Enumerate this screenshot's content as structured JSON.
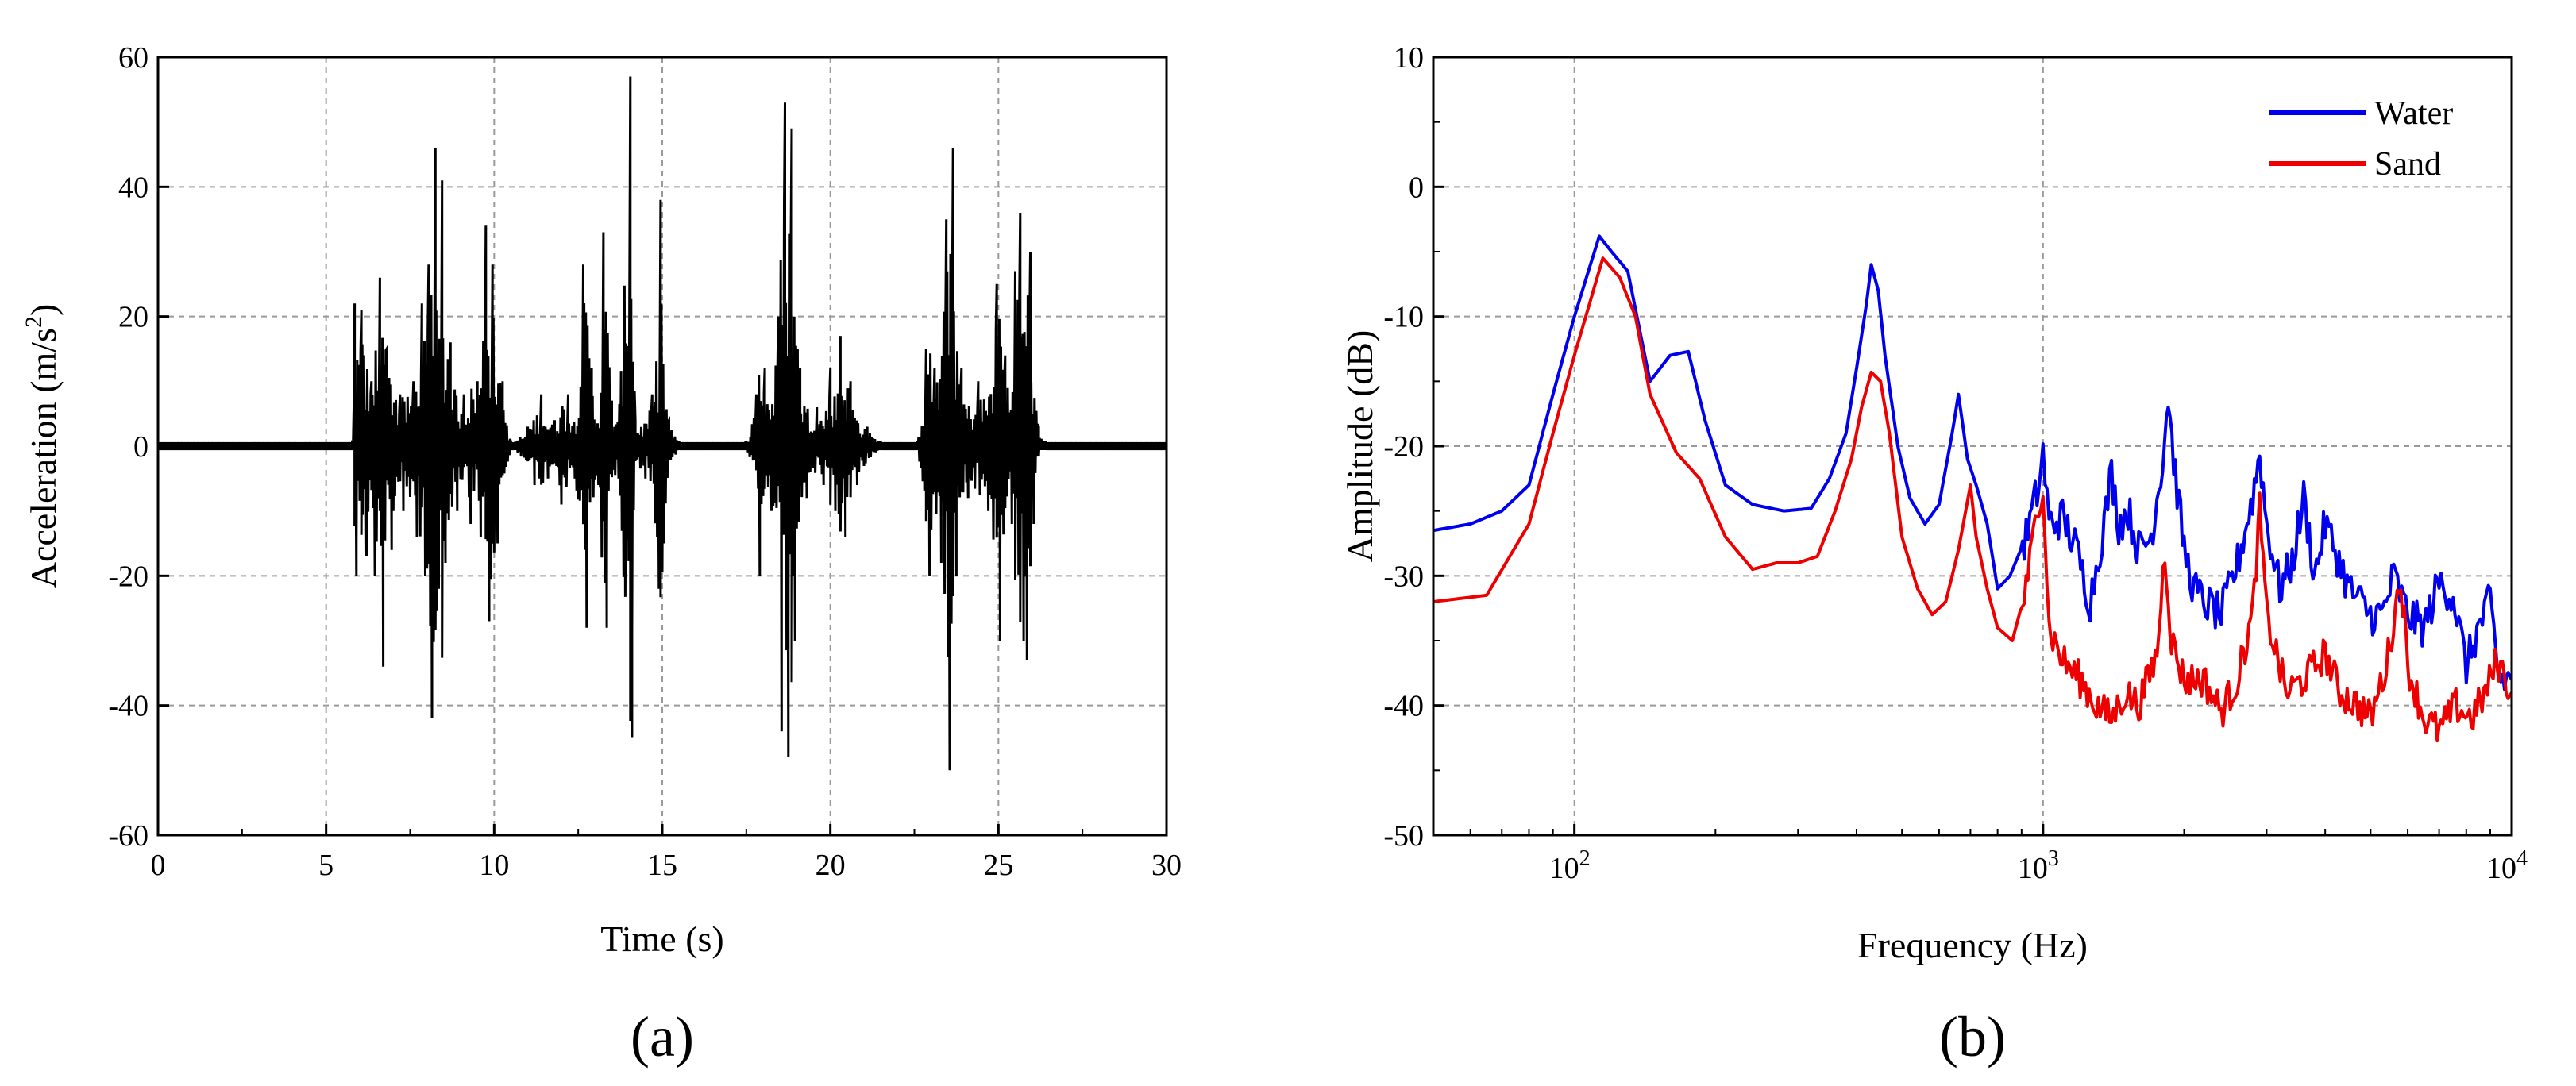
{
  "chart_data": [
    {
      "type": "line",
      "panel_label": "(a)",
      "xlabel": "Time (s)",
      "ylabel_main": "Acceleration (m/s",
      "ylabel_sup": "2",
      "ylabel_close": ")",
      "xlim": [
        0,
        30
      ],
      "ylim": [
        -60,
        60
      ],
      "xticks": [
        0,
        5,
        10,
        15,
        20,
        25,
        30
      ],
      "yticks": [
        -60,
        -40,
        -20,
        0,
        20,
        40,
        60
      ],
      "grid": true,
      "series": [
        {
          "color": "#000000",
          "noise_floor": 0.6,
          "points": [
            [
              0,
              0
            ],
            [
              5.8,
              0.5
            ],
            [
              5.85,
              22
            ],
            [
              5.9,
              -20
            ],
            [
              6.05,
              21
            ],
            [
              6.2,
              -17
            ],
            [
              6.35,
              10
            ],
            [
              6.45,
              -20
            ],
            [
              6.6,
              26
            ],
            [
              6.7,
              -34
            ],
            [
              6.8,
              15
            ],
            [
              6.95,
              -16
            ],
            [
              7.2,
              8
            ],
            [
              7.3,
              -10
            ],
            [
              7.6,
              10
            ],
            [
              7.7,
              -14
            ],
            [
              7.85,
              22
            ],
            [
              7.95,
              -20
            ],
            [
              8.05,
              28
            ],
            [
              8.15,
              -42
            ],
            [
              8.25,
              46
            ],
            [
              8.35,
              -22
            ],
            [
              8.45,
              41
            ],
            [
              8.55,
              -18
            ],
            [
              8.7,
              16
            ],
            [
              8.9,
              -10
            ],
            [
              9.1,
              8
            ],
            [
              9.3,
              -12
            ],
            [
              9.5,
              10
            ],
            [
              9.6,
              -14
            ],
            [
              9.75,
              34
            ],
            [
              9.85,
              -27
            ],
            [
              9.95,
              28
            ],
            [
              10.1,
              -15
            ],
            [
              10.25,
              10
            ],
            [
              10.5,
              0.6
            ],
            [
              11.0,
              3
            ],
            [
              11.2,
              -6
            ],
            [
              11.4,
              8
            ],
            [
              11.6,
              -5
            ],
            [
              11.8,
              4
            ],
            [
              12.0,
              -9
            ],
            [
              12.2,
              8
            ],
            [
              12.4,
              -5
            ],
            [
              12.65,
              28
            ],
            [
              12.75,
              -28
            ],
            [
              12.9,
              12
            ],
            [
              13.1,
              -6
            ],
            [
              13.25,
              33
            ],
            [
              13.35,
              -28
            ],
            [
              13.5,
              7
            ],
            [
              13.7,
              -5
            ],
            [
              14.05,
              57
            ],
            [
              14.1,
              -45
            ],
            [
              14.2,
              4
            ],
            [
              14.5,
              -5
            ],
            [
              14.7,
              8
            ],
            [
              14.9,
              -22
            ],
            [
              14.95,
              38
            ],
            [
              15.05,
              -15
            ],
            [
              15.2,
              4
            ],
            [
              15.5,
              0.6
            ],
            [
              17.5,
              0.6
            ],
            [
              17.8,
              8
            ],
            [
              17.9,
              -20
            ],
            [
              18.05,
              12
            ],
            [
              18.25,
              -10
            ],
            [
              18.45,
              20
            ],
            [
              18.55,
              -44
            ],
            [
              18.65,
              53
            ],
            [
              18.75,
              -48
            ],
            [
              18.85,
              49
            ],
            [
              18.95,
              -30
            ],
            [
              19.1,
              12
            ],
            [
              19.3,
              -8
            ],
            [
              19.6,
              6
            ],
            [
              19.8,
              -6
            ],
            [
              20.0,
              12
            ],
            [
              20.15,
              -10
            ],
            [
              20.3,
              17
            ],
            [
              20.45,
              -14
            ],
            [
              20.6,
              10
            ],
            [
              20.8,
              -6
            ],
            [
              21.1,
              3
            ],
            [
              21.5,
              0.6
            ],
            [
              22.6,
              0.6
            ],
            [
              22.85,
              15
            ],
            [
              22.95,
              -20
            ],
            [
              23.1,
              12
            ],
            [
              23.3,
              -18
            ],
            [
              23.45,
              35
            ],
            [
              23.55,
              -50
            ],
            [
              23.65,
              46
            ],
            [
              23.75,
              -20
            ],
            [
              23.9,
              12
            ],
            [
              24.1,
              -8
            ],
            [
              24.4,
              10
            ],
            [
              24.7,
              -10
            ],
            [
              24.95,
              25
            ],
            [
              25.05,
              -30
            ],
            [
              25.2,
              14
            ],
            [
              25.4,
              -12
            ],
            [
              25.5,
              27
            ],
            [
              25.65,
              36
            ],
            [
              25.75,
              -30
            ],
            [
              25.85,
              -33
            ],
            [
              25.95,
              30
            ],
            [
              26.05,
              -12
            ],
            [
              26.2,
              3
            ],
            [
              26.4,
              0.6
            ],
            [
              30,
              0
            ]
          ]
        }
      ]
    },
    {
      "type": "line",
      "panel_label": "(b)",
      "xlabel": "Frequency (Hz)",
      "ylabel": "Amplitude (dB)",
      "xscale": "log",
      "xlim": [
        50,
        10000
      ],
      "ylim": [
        -50,
        10
      ],
      "xticks": [
        100,
        1000,
        10000
      ],
      "xtick_bases": [
        "10",
        "10",
        "10"
      ],
      "xtick_exps": [
        "2",
        "3",
        "4"
      ],
      "yticks": [
        -50,
        -40,
        -30,
        -20,
        -10,
        0,
        10
      ],
      "grid": true,
      "legend_position": "top-right",
      "series": [
        {
          "name": "Water",
          "color": "#0000ee",
          "jitter_start": 900,
          "jitter_amp": 1.6,
          "points": [
            [
              50,
              -26.5
            ],
            [
              60,
              -26
            ],
            [
              70,
              -25
            ],
            [
              80,
              -23
            ],
            [
              90,
              -16
            ],
            [
              100,
              -10
            ],
            [
              113,
              -3.8
            ],
            [
              120,
              -5
            ],
            [
              130,
              -6.5
            ],
            [
              145,
              -15
            ],
            [
              160,
              -13
            ],
            [
              175,
              -12.7
            ],
            [
              190,
              -18
            ],
            [
              210,
              -23
            ],
            [
              240,
              -24.5
            ],
            [
              280,
              -25
            ],
            [
              320,
              -24.8
            ],
            [
              350,
              -22.5
            ],
            [
              380,
              -19
            ],
            [
              400,
              -14
            ],
            [
              420,
              -9
            ],
            [
              430,
              -6
            ],
            [
              445,
              -8
            ],
            [
              460,
              -13
            ],
            [
              490,
              -20
            ],
            [
              520,
              -24
            ],
            [
              560,
              -26
            ],
            [
              600,
              -24.5
            ],
            [
              640,
              -19
            ],
            [
              660,
              -16
            ],
            [
              690,
              -21
            ],
            [
              720,
              -23
            ],
            [
              760,
              -26
            ],
            [
              800,
              -31
            ],
            [
              850,
              -30
            ],
            [
              920,
              -27
            ],
            [
              980,
              -23
            ],
            [
              1000,
              -20.5
            ],
            [
              1030,
              -26
            ],
            [
              1100,
              -25.5
            ],
            [
              1180,
              -28
            ],
            [
              1260,
              -32
            ],
            [
              1350,
              -26
            ],
            [
              1400,
              -22
            ],
            [
              1450,
              -26
            ],
            [
              1520,
              -25
            ],
            [
              1600,
              -28
            ],
            [
              1700,
              -27
            ],
            [
              1800,
              -21
            ],
            [
              1850,
              -16
            ],
            [
              1900,
              -21
            ],
            [
              2000,
              -28
            ],
            [
              2100,
              -31
            ],
            [
              2200,
              -32
            ],
            [
              2400,
              -33
            ],
            [
              2600,
              -29
            ],
            [
              2800,
              -24
            ],
            [
              2900,
              -20.5
            ],
            [
              3000,
              -26
            ],
            [
              3200,
              -31
            ],
            [
              3400,
              -29
            ],
            [
              3600,
              -24
            ],
            [
              3800,
              -30
            ],
            [
              4000,
              -26
            ],
            [
              4200,
              -28
            ],
            [
              4500,
              -31
            ],
            [
              5000,
              -33
            ],
            [
              5300,
              -33
            ],
            [
              5600,
              -30
            ],
            [
              6000,
              -33
            ],
            [
              6500,
              -34
            ],
            [
              7000,
              -30.5
            ],
            [
              7500,
              -31.5
            ],
            [
              8000,
              -37
            ],
            [
              8500,
              -34
            ],
            [
              9000,
              -32
            ],
            [
              9400,
              -38
            ],
            [
              10000,
              -38
            ]
          ]
        },
        {
          "name": "Sand",
          "color": "#ee0000",
          "jitter_start": 900,
          "jitter_amp": 1.4,
          "points": [
            [
              50,
              -32
            ],
            [
              65,
              -31.5
            ],
            [
              80,
              -26
            ],
            [
              90,
              -19
            ],
            [
              100,
              -13
            ],
            [
              115,
              -5.5
            ],
            [
              125,
              -7
            ],
            [
              135,
              -10
            ],
            [
              145,
              -16
            ],
            [
              165,
              -20.5
            ],
            [
              185,
              -22.5
            ],
            [
              210,
              -27
            ],
            [
              240,
              -29.5
            ],
            [
              270,
              -29
            ],
            [
              300,
              -29
            ],
            [
              330,
              -28.5
            ],
            [
              360,
              -25
            ],
            [
              390,
              -21
            ],
            [
              410,
              -17
            ],
            [
              430,
              -14.3
            ],
            [
              450,
              -15
            ],
            [
              470,
              -19
            ],
            [
              500,
              -27
            ],
            [
              540,
              -31
            ],
            [
              580,
              -33
            ],
            [
              620,
              -32
            ],
            [
              660,
              -28
            ],
            [
              700,
              -23
            ],
            [
              720,
              -27
            ],
            [
              760,
              -31
            ],
            [
              800,
              -34
            ],
            [
              860,
              -35
            ],
            [
              920,
              -31
            ],
            [
              980,
              -24
            ],
            [
              1000,
              -23
            ],
            [
              1030,
              -34
            ],
            [
              1100,
              -36.5
            ],
            [
              1200,
              -38
            ],
            [
              1300,
              -40
            ],
            [
              1400,
              -41
            ],
            [
              1500,
              -39
            ],
            [
              1600,
              -40
            ],
            [
              1750,
              -36
            ],
            [
              1820,
              -28
            ],
            [
              1880,
              -35
            ],
            [
              2000,
              -38
            ],
            [
              2200,
              -38
            ],
            [
              2400,
              -40.5
            ],
            [
              2600,
              -38
            ],
            [
              2800,
              -33
            ],
            [
              2900,
              -25
            ],
            [
              3000,
              -33
            ],
            [
              3300,
              -39
            ],
            [
              3600,
              -38
            ],
            [
              4000,
              -36
            ],
            [
              4300,
              -39
            ],
            [
              4700,
              -40
            ],
            [
              5000,
              -41
            ],
            [
              5400,
              -37
            ],
            [
              5800,
              -30
            ],
            [
              6000,
              -37
            ],
            [
              6500,
              -41
            ],
            [
              7000,
              -42
            ],
            [
              7600,
              -40
            ],
            [
              8200,
              -41
            ],
            [
              8800,
              -39
            ],
            [
              9300,
              -36.5
            ],
            [
              10000,
              -39
            ]
          ]
        }
      ]
    }
  ]
}
